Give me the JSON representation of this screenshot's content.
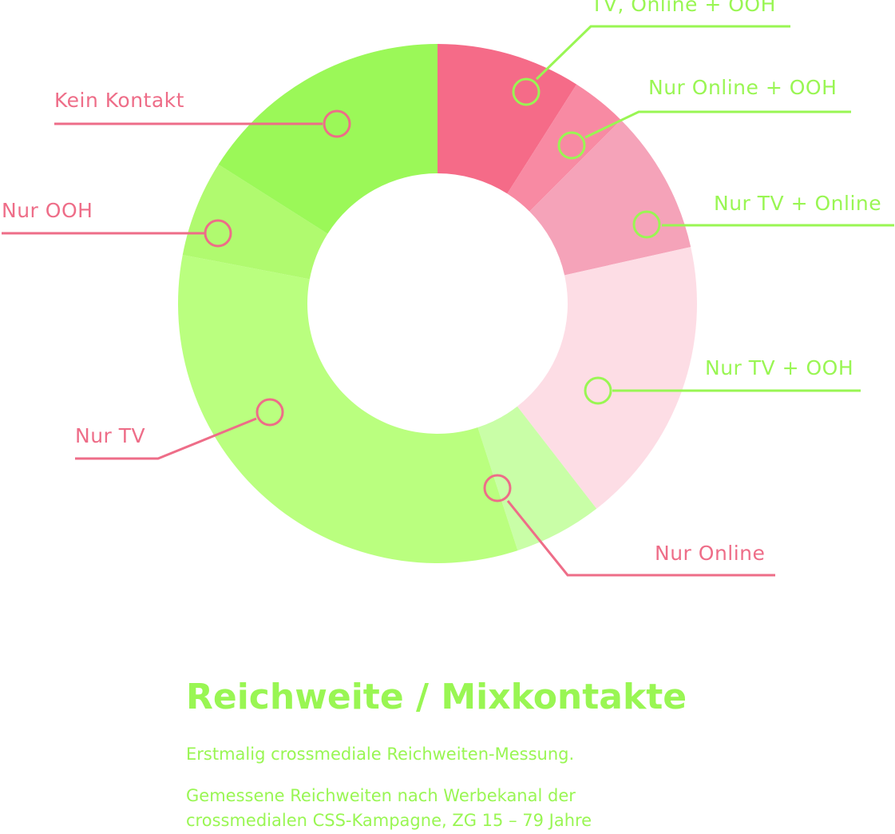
{
  "colors": {
    "pink_line": "#ee6d88",
    "green_line": "#99f653",
    "title": "#99f653",
    "background": "#ffffff"
  },
  "chart_data": {
    "type": "pie",
    "variant": "donut",
    "title": "Reichweite / Mixkontakte",
    "subtitle": "Erstmalig crossmediale Reichweiten-Messung.",
    "caption": "Gemessene Reichweiten nach Werbekanal der crossmedialen CSS-Kampagne, ZG 15 – 79 Jahre",
    "start_angle_deg": 0,
    "direction": "clockwise",
    "series": [
      {
        "label": "TV, Online + OOH",
        "value": 9,
        "color": "#f56b88",
        "label_side": "right",
        "line_color": "#99f653"
      },
      {
        "label": "Nur Online + OOH",
        "value": 3.5,
        "color": "#f88aa3",
        "label_side": "right",
        "line_color": "#99f653"
      },
      {
        "label": "Nur TV + Online",
        "value": 9,
        "color": "#f5a3b9",
        "label_side": "right",
        "line_color": "#99f653"
      },
      {
        "label": "Nur TV + OOH",
        "value": 18,
        "color": "#fddde5",
        "label_side": "right",
        "line_color": "#99f653"
      },
      {
        "label": "Nur Online",
        "value": 5.5,
        "color": "#c9fea7",
        "label_side": "right",
        "line_color": "#ee6d88"
      },
      {
        "label": "Nur TV",
        "value": 33,
        "color": "#baff7f",
        "label_side": "left",
        "line_color": "#ee6d88"
      },
      {
        "label": "Nur OOH",
        "value": 6,
        "color": "#b0fa6f",
        "label_side": "left",
        "line_color": "#ee6d88"
      },
      {
        "label": "Kein Kontakt",
        "value": 16,
        "color": "#9bf858",
        "label_side": "left",
        "line_color": "#ee6d88"
      }
    ]
  },
  "text": {
    "title": "Reichweite / Mixkontakte",
    "subtitle": "Erstmalig crossmediale Reichweiten-Messung.",
    "caption_line1": "Gemessene Reichweiten nach Werbekanal der",
    "caption_line2": "crossmedialen CSS-Kampagne, ZG 15 – 79 Jahre"
  }
}
